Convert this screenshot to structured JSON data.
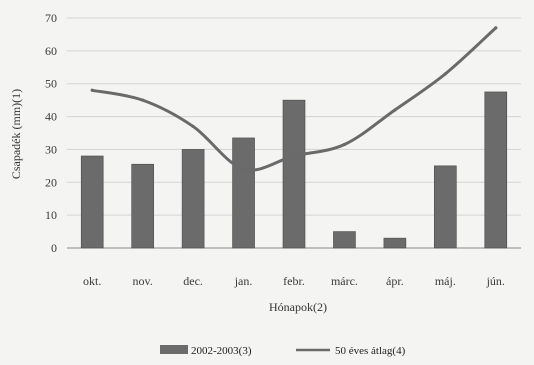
{
  "chart_data": {
    "type": "bar",
    "title": "",
    "xlabel": "Hónapok(2)",
    "ylabel": "Csapadék (mm)(1)",
    "ylim": [
      0,
      70
    ],
    "yticks": [
      0,
      10,
      20,
      30,
      40,
      50,
      60,
      70
    ],
    "grid": true,
    "legend_position": "bottom",
    "categories": [
      "okt.",
      "nov.",
      "dec.",
      "jan.",
      "febr.",
      "márc.",
      "ápr.",
      "máj.",
      "jún."
    ],
    "series": [
      {
        "name": "2002-2003(3)",
        "kind": "bar",
        "color": "#6b6b6b",
        "values": [
          28,
          25.5,
          30,
          33.5,
          45,
          5,
          3,
          25,
          47.5
        ]
      },
      {
        "name": "50 éves átlag(4)",
        "kind": "line",
        "color": "#6a6a6a",
        "values": [
          48,
          45,
          37,
          24,
          28,
          31.5,
          42,
          53,
          67
        ]
      }
    ]
  }
}
